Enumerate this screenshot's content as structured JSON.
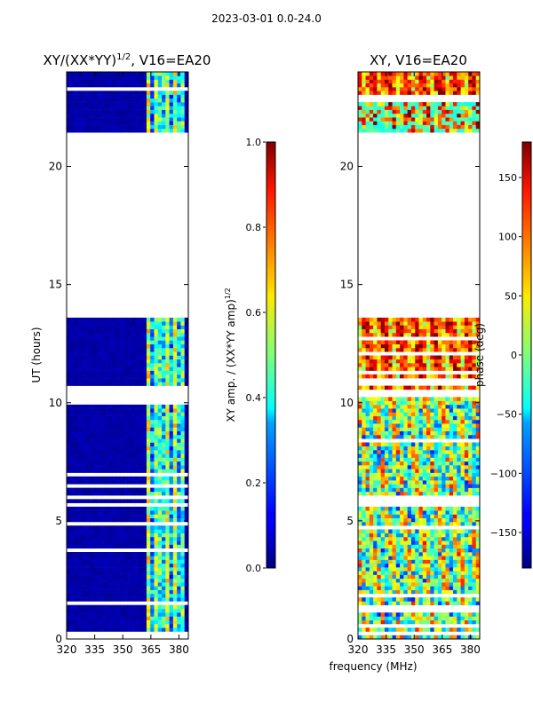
{
  "suptitle": "2023-03-01 0.0-24.0",
  "colors": {
    "background": "#ffffff",
    "axis": "#000000",
    "low": "#00008f",
    "empty": "#ffffff"
  },
  "chart_data": [
    {
      "type": "heatmap",
      "id": "amp",
      "title": "XY/(XX*YY)",
      "title_superscript": "1/2",
      "title_suffix": ", V16=EA20",
      "xlabel": "",
      "ylabel": "UT (hours)",
      "xlim": [
        320,
        385
      ],
      "ylim": [
        0,
        24
      ],
      "xticks": [
        320,
        335,
        350,
        365,
        380
      ],
      "yticks": [
        0,
        5,
        10,
        15,
        20
      ],
      "gaps_hours": [
        [
          13.6,
          21.4
        ],
        [
          10.2,
          10.6
        ],
        [
          5.9,
          6.1
        ]
      ],
      "colormap": "jet",
      "colorbar": {
        "label": "XY amp. / (XX*YY amp)",
        "label_superscript": "1/2",
        "range": [
          0.0,
          1.0
        ],
        "ticks": [
          "0.0",
          "0.2",
          "0.4",
          "0.6",
          "0.8",
          "1.0"
        ]
      }
    },
    {
      "type": "heatmap",
      "id": "phase",
      "title": "XY, V16=EA20",
      "xlabel": "frequency (MHz)",
      "ylabel": "",
      "xlim": [
        320,
        385
      ],
      "ylim": [
        0,
        24
      ],
      "xticks": [
        320,
        335,
        350,
        365,
        380
      ],
      "yticks": [
        0,
        5,
        10,
        15,
        20
      ],
      "gaps_hours": [
        [
          13.6,
          21.4
        ],
        [
          10.2,
          10.6
        ],
        [
          5.9,
          6.1
        ]
      ],
      "colormap": "jet",
      "colorbar": {
        "label": "phase (deg)",
        "range": [
          -180,
          180
        ],
        "ticks": [
          "−150",
          "−100",
          "−50",
          "0",
          "50",
          "100",
          "150"
        ]
      }
    }
  ]
}
